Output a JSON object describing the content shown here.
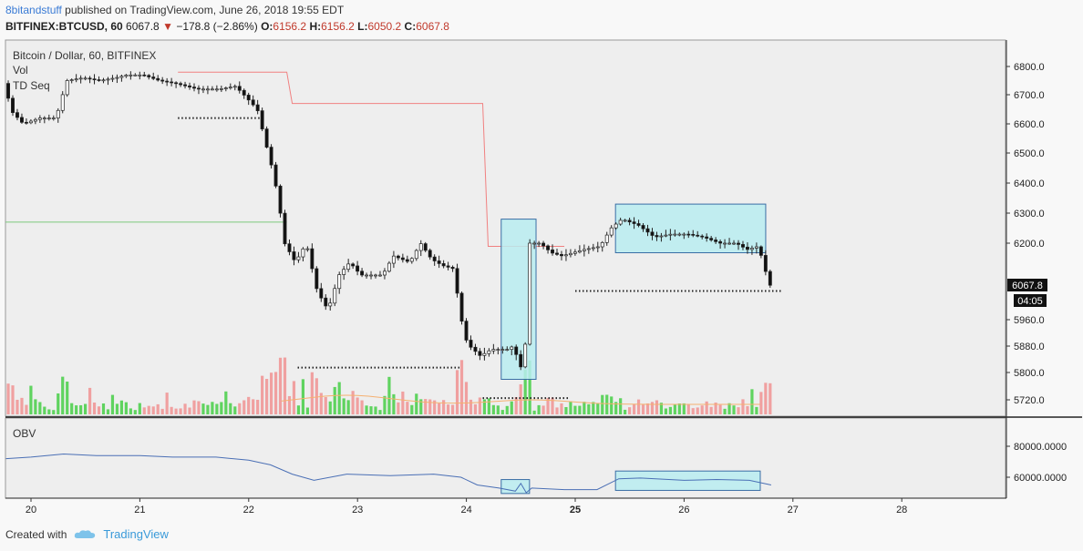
{
  "header": {
    "user": "8bitandstuff",
    "published_text": "published on TradingView.com, June 26, 2018 19:55 EDT",
    "symbol": "BITFINEX:BTCUSD, 60",
    "last": "6067.8",
    "change": "−178.8 (−2.86%)",
    "o_label": "O:",
    "o": "6156.2",
    "h_label": "H:",
    "h": "6156.2",
    "l_label": "L:",
    "l": "6050.2",
    "c_label": "C:",
    "c": "6067.8"
  },
  "legend": {
    "title": "Bitcoin / Dollar, 60, BITFINEX",
    "vol": "Vol",
    "td": "TD Seq",
    "obv": "OBV"
  },
  "price_badge": "6067.8",
  "time_badge": "04:05",
  "footer": {
    "created": "Created with",
    "brand": "TradingView"
  },
  "colors": {
    "up_volume": "#5fd35f",
    "down_volume": "#f0a0a0",
    "obv_line": "#4a6fb5",
    "box_fill": "#b8ecf0",
    "box_stroke": "#3a6ea5",
    "td_line": "#f08080",
    "support_line": "#7dc97d",
    "ma_line": "#f5b070"
  },
  "chart_data": {
    "type": "candlestick",
    "price_axis": {
      "ticks": [
        5720,
        5800,
        5880,
        5960,
        6200,
        6300,
        6400,
        6500,
        6600,
        6700,
        6800
      ],
      "tick_labels": [
        "5720.0",
        "5800.0",
        "5880.0",
        "5960.0",
        "6200.0",
        "6300.0",
        "6400.0",
        "6500.0",
        "6600.0",
        "6700.0",
        "6800.0"
      ],
      "range": [
        5670,
        6850
      ]
    },
    "obv_axis": {
      "ticks": [
        60000,
        80000
      ],
      "tick_labels": [
        "60000.0000",
        "80000.0000"
      ]
    },
    "time_axis": {
      "ticks": [
        20,
        21,
        22,
        23,
        24,
        25,
        26,
        27,
        28
      ],
      "tick_labels": [
        "20",
        "21",
        "22",
        "23",
        "24",
        "25",
        "26",
        "27",
        "28"
      ],
      "bold_tick": "25",
      "range": [
        19.75,
        28.75
      ]
    },
    "price_path": [
      [
        19.77,
        6740
      ],
      [
        19.85,
        6640
      ],
      [
        19.95,
        6600
      ],
      [
        20.1,
        6620
      ],
      [
        20.25,
        6620
      ],
      [
        20.35,
        6750
      ],
      [
        20.5,
        6760
      ],
      [
        20.65,
        6750
      ],
      [
        20.8,
        6760
      ],
      [
        20.9,
        6770
      ],
      [
        21.05,
        6770
      ],
      [
        21.2,
        6750
      ],
      [
        21.35,
        6740
      ],
      [
        21.55,
        6720
      ],
      [
        21.75,
        6720
      ],
      [
        21.9,
        6730
      ],
      [
        22.0,
        6690
      ],
      [
        22.1,
        6650
      ],
      [
        22.2,
        6500
      ],
      [
        22.25,
        6430
      ],
      [
        22.3,
        6330
      ],
      [
        22.35,
        6200
      ],
      [
        22.45,
        6140
      ],
      [
        22.55,
        6200
      ],
      [
        22.65,
        6050
      ],
      [
        22.75,
        5990
      ],
      [
        22.85,
        6100
      ],
      [
        22.95,
        6140
      ],
      [
        23.05,
        6100
      ],
      [
        23.15,
        6100
      ],
      [
        23.25,
        6100
      ],
      [
        23.35,
        6160
      ],
      [
        23.5,
        6140
      ],
      [
        23.6,
        6200
      ],
      [
        23.7,
        6150
      ],
      [
        23.8,
        6130
      ],
      [
        23.9,
        6120
      ],
      [
        24.0,
        5910
      ],
      [
        24.05,
        5880
      ],
      [
        24.15,
        5850
      ],
      [
        24.25,
        5870
      ],
      [
        24.3,
        5870
      ],
      [
        24.4,
        5870
      ],
      [
        24.45,
        5880
      ],
      [
        24.55,
        5790
      ],
      [
        24.6,
        6200
      ],
      [
        24.7,
        6200
      ],
      [
        24.8,
        6170
      ],
      [
        24.9,
        6160
      ],
      [
        25.0,
        6170
      ],
      [
        25.1,
        6180
      ],
      [
        25.25,
        6190
      ],
      [
        25.35,
        6250
      ],
      [
        25.45,
        6280
      ],
      [
        25.6,
        6260
      ],
      [
        25.75,
        6220
      ],
      [
        25.9,
        6230
      ],
      [
        26.05,
        6230
      ],
      [
        26.2,
        6220
      ],
      [
        26.35,
        6200
      ],
      [
        26.5,
        6200
      ],
      [
        26.6,
        6180
      ],
      [
        26.7,
        6190
      ],
      [
        26.75,
        6140
      ],
      [
        26.8,
        6068
      ]
    ],
    "obv_path": [
      [
        19.77,
        72000
      ],
      [
        20.0,
        73000
      ],
      [
        20.3,
        75000
      ],
      [
        20.6,
        74000
      ],
      [
        21.0,
        74000
      ],
      [
        21.3,
        73000
      ],
      [
        21.7,
        73000
      ],
      [
        22.0,
        71000
      ],
      [
        22.2,
        68000
      ],
      [
        22.4,
        62000
      ],
      [
        22.6,
        58000
      ],
      [
        22.9,
        62000
      ],
      [
        23.3,
        61000
      ],
      [
        23.7,
        62000
      ],
      [
        23.95,
        60000
      ],
      [
        24.1,
        55000
      ],
      [
        24.3,
        53000
      ],
      [
        24.45,
        51000
      ],
      [
        24.5,
        56000
      ],
      [
        24.55,
        50000
      ],
      [
        24.6,
        53000
      ],
      [
        24.9,
        52000
      ],
      [
        25.2,
        52000
      ],
      [
        25.4,
        59000
      ],
      [
        25.6,
        59500
      ],
      [
        26.0,
        58000
      ],
      [
        26.3,
        58500
      ],
      [
        26.6,
        58000
      ],
      [
        26.8,
        55000
      ]
    ],
    "annotations": {
      "td_resistance_line": [
        [
          21.35,
          6780
        ],
        [
          22.35,
          6780
        ],
        [
          22.4,
          6670
        ],
        [
          24.15,
          6670
        ],
        [
          24.2,
          6190
        ],
        [
          24.9,
          6190
        ]
      ],
      "support_line_y": 6270,
      "dotted_levels": [
        [
          21.35,
          22.1,
          6620
        ],
        [
          22.45,
          23.95,
          5815
        ],
        [
          24.15,
          24.95,
          5725
        ],
        [
          25.0,
          26.9,
          6050
        ]
      ],
      "price_boxes": [
        [
          24.32,
          24.64,
          5780,
          6280
        ],
        [
          25.37,
          26.75,
          6170,
          6330
        ]
      ],
      "obv_boxes": [
        [
          24.32,
          24.58,
          49500,
          58500
        ],
        [
          25.37,
          26.7,
          51500,
          64000
        ]
      ]
    }
  }
}
